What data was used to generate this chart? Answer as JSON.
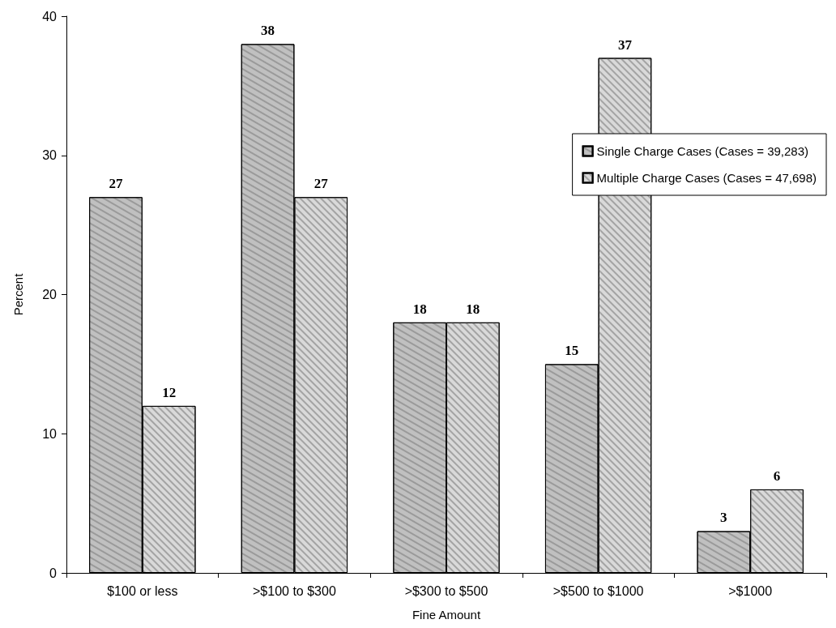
{
  "chart_data": {
    "type": "bar",
    "xlabel": "Fine Amount",
    "ylabel": "Percent",
    "categories": [
      "$100 or less",
      ">$100 to $300",
      ">$300 to $500",
      ">$500 to $1000",
      ">$1000"
    ],
    "series": [
      {
        "name": "Single Charge Cases (Cases = 39,283)",
        "color": "#c0c0c0",
        "values": [
          27,
          38,
          18,
          15,
          3
        ]
      },
      {
        "name": "Multiple Charge Cases (Cases = 47,698)",
        "color": "#d9d9d9",
        "values": [
          12,
          27,
          18,
          37,
          6
        ]
      }
    ],
    "ylim": [
      0,
      40
    ],
    "yticks": [
      0,
      10,
      20,
      30,
      40
    ],
    "grid": false,
    "legend": "top right",
    "data_labels": true
  }
}
